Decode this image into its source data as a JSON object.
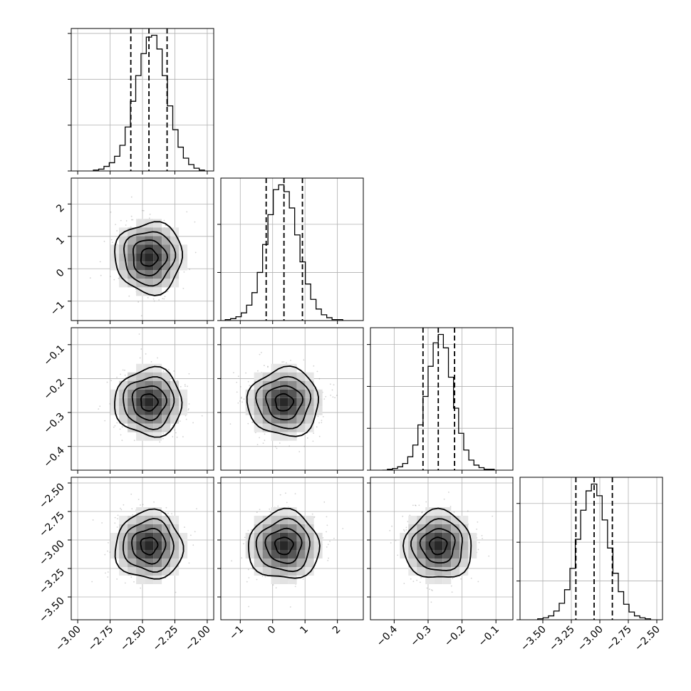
{
  "chart_data": {
    "type": "corner",
    "grid": true,
    "parameters": [
      {
        "range": [
          -3.05,
          -1.95
        ],
        "ticks": [
          -3.0,
          -2.75,
          -2.5,
          -2.25,
          -2.0
        ],
        "tick_labels": [
          "−3.00",
          "−2.75",
          "−2.50",
          "−2.25",
          "−2.00"
        ],
        "mean": -2.45,
        "sd": 0.13,
        "quantiles": [
          -2.59,
          -2.45,
          -2.31
        ],
        "hist": [
          1,
          2,
          5,
          9,
          16,
          28,
          48,
          76,
          104,
          128,
          146,
          148,
          133,
          104,
          71,
          45,
          26,
          14,
          7,
          3,
          1
        ]
      },
      {
        "range": [
          -1.6,
          2.8
        ],
        "ticks": [
          -1,
          0,
          1,
          2
        ],
        "tick_labels": [
          "−1",
          "0",
          "1",
          "2"
        ],
        "mean": 0.35,
        "sd": 0.55,
        "quantiles": [
          -0.2,
          0.35,
          0.92
        ],
        "hist": [
          1,
          2,
          4,
          8,
          16,
          29,
          50,
          79,
          110,
          136,
          141,
          134,
          117,
          89,
          61,
          38,
          22,
          12,
          6,
          3,
          1,
          1
        ]
      },
      {
        "range": [
          -0.47,
          -0.05
        ],
        "ticks": [
          -0.4,
          -0.3,
          -0.2,
          -0.1
        ],
        "tick_labels": [
          "−0.4",
          "−0.3",
          "−0.2",
          "−0.1"
        ],
        "mean": -0.27,
        "sd": 0.05,
        "quantiles": [
          -0.315,
          -0.27,
          -0.222
        ],
        "hist": [
          0,
          1,
          2,
          4,
          8,
          16,
          30,
          54,
          88,
          124,
          152,
          162,
          146,
          111,
          74,
          44,
          24,
          12,
          6,
          3,
          1,
          1
        ]
      },
      {
        "range": [
          -3.7,
          -2.45
        ],
        "ticks": [
          -3.5,
          -3.25,
          -3.0,
          -2.75,
          -2.5
        ],
        "tick_labels": [
          "−3.50",
          "−3.25",
          "−3.00",
          "−2.75",
          "−2.50"
        ],
        "mean": -3.05,
        "sd": 0.15,
        "quantiles": [
          -3.21,
          -3.05,
          -2.89
        ],
        "hist": [
          1,
          2,
          4,
          9,
          17,
          31,
          53,
          83,
          113,
          133,
          140,
          128,
          103,
          74,
          48,
          29,
          16,
          8,
          4,
          2,
          1
        ]
      }
    ]
  }
}
